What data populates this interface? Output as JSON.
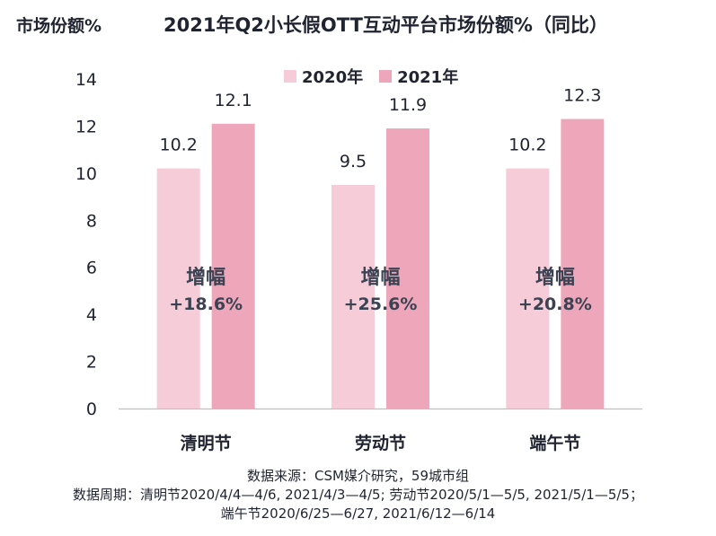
{
  "chart_data": {
    "type": "bar",
    "title": "2021年Q2小长假OTT互动平台市场份额%（同比）",
    "ylabel": "市场份额%",
    "xlabel": "",
    "categories": [
      "清明节",
      "劳动节",
      "端午节"
    ],
    "series": [
      {
        "name": "2020年",
        "values": [
          10.2,
          9.5,
          10.2
        ],
        "color": "#f6ccd8"
      },
      {
        "name": "2021年",
        "values": [
          12.1,
          11.9,
          12.3
        ],
        "color": "#eea6bb"
      }
    ],
    "ylim": [
      0,
      14
    ],
    "yticks": [
      0,
      2,
      4,
      6,
      8,
      10,
      12,
      14
    ],
    "grid": false,
    "legend": "top-center",
    "annotations": [
      {
        "label": "增幅",
        "value": "+18.6%"
      },
      {
        "label": "增幅",
        "value": "+25.6%"
      },
      {
        "label": "增幅",
        "value": "+20.8%"
      }
    ]
  },
  "notes": [
    "数据来源：CSM媒介研究，59城市组",
    "数据周期：清明节2020/4/4—4/6, 2021/4/3—4/5; 劳动节2020/5/1—5/5, 2021/5/1—5/5；",
    "端午节2020/6/25—6/27, 2021/6/12—6/14"
  ]
}
